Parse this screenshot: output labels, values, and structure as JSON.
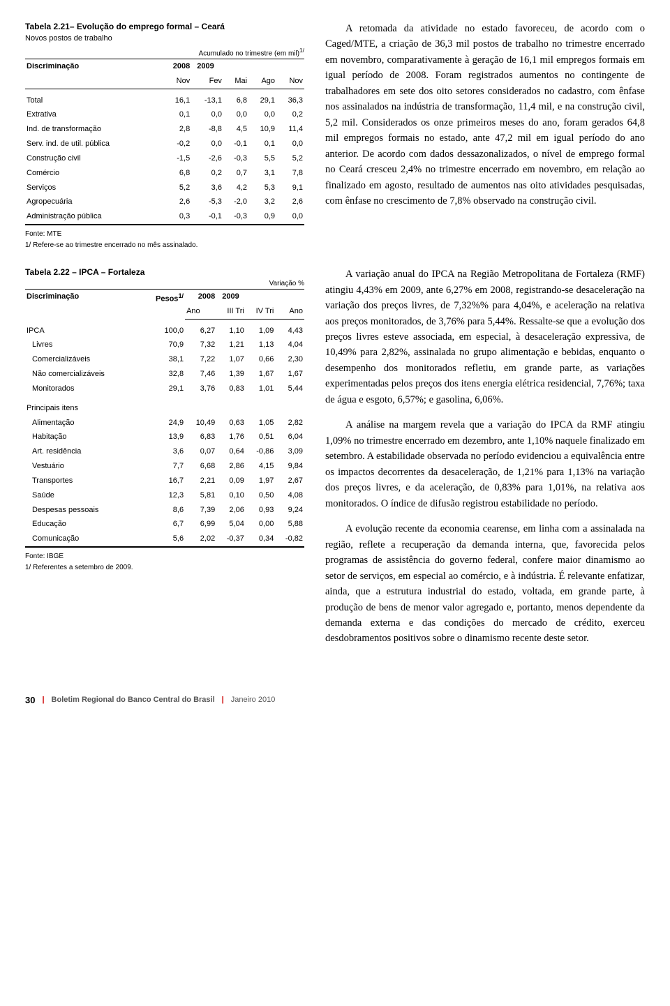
{
  "table1": {
    "title": "Tabela 2.21– Evolução do emprego formal – Ceará",
    "subtitle": "Novos postos de trabalho",
    "unit_note": "Acumulado no trimestre (em mil)",
    "unit_sup": "1/",
    "col_group_label": "Discriminação",
    "year1": "2008",
    "year2": "2009",
    "subcols": [
      "Nov",
      "Fev",
      "Mai",
      "Ago",
      "Nov"
    ],
    "rows": [
      {
        "label": "Total",
        "v": [
          "16,1",
          "-13,1",
          "6,8",
          "29,1",
          "36,3"
        ]
      },
      {
        "label": "Extrativa",
        "v": [
          "0,1",
          "0,0",
          "0,0",
          "0,0",
          "0,2"
        ]
      },
      {
        "label": "Ind. de transformação",
        "v": [
          "2,8",
          "-8,8",
          "4,5",
          "10,9",
          "11,4"
        ]
      },
      {
        "label": "Serv. ind. de util. pública",
        "v": [
          "-0,2",
          "0,0",
          "-0,1",
          "0,1",
          "0,0"
        ]
      },
      {
        "label": "Construção civil",
        "v": [
          "-1,5",
          "-2,6",
          "-0,3",
          "5,5",
          "5,2"
        ]
      },
      {
        "label": "Comércio",
        "v": [
          "6,8",
          "0,2",
          "0,7",
          "3,1",
          "7,8"
        ]
      },
      {
        "label": "Serviços",
        "v": [
          "5,2",
          "3,6",
          "4,2",
          "5,3",
          "9,1"
        ]
      },
      {
        "label": "Agropecuária",
        "v": [
          "2,6",
          "-5,3",
          "-2,0",
          "3,2",
          "2,6"
        ]
      },
      {
        "label": "Administração pública",
        "v": [
          "0,3",
          "-0,1",
          "-0,3",
          "0,9",
          "0,0"
        ]
      }
    ],
    "source": "Fonte: MTE",
    "footnote": "1/ Refere-se ao trimestre encerrado no mês assinalado."
  },
  "table2": {
    "title": "Tabela 2.22 – IPCA – Fortaleza",
    "unit_note": "Variação %",
    "col_group_label": "Discriminação",
    "pesos_label": "Pesos",
    "pesos_sup": "1/",
    "year1": "2008",
    "year2": "2009",
    "subcols": [
      "Ano",
      "III Tri",
      "IV Tri",
      "Ano"
    ],
    "rows_a": [
      {
        "label": "IPCA",
        "indent": 0,
        "v": [
          "100,0",
          "6,27",
          "1,10",
          "1,09",
          "4,43"
        ]
      },
      {
        "label": "Livres",
        "indent": 1,
        "v": [
          "70,9",
          "7,32",
          "1,21",
          "1,13",
          "4,04"
        ]
      },
      {
        "label": "Comercializáveis",
        "indent": 1,
        "v": [
          "38,1",
          "7,22",
          "1,07",
          "0,66",
          "2,30"
        ]
      },
      {
        "label": "Não comercializáveis",
        "indent": 1,
        "v": [
          "32,8",
          "7,46",
          "1,39",
          "1,67",
          "1,67"
        ]
      },
      {
        "label": "Monitorados",
        "indent": 1,
        "v": [
          "29,1",
          "3,76",
          "0,83",
          "1,01",
          "5,44"
        ]
      }
    ],
    "section_label": "Principais itens",
    "rows_b": [
      {
        "label": "Alimentação",
        "v": [
          "24,9",
          "10,49",
          "0,63",
          "1,05",
          "2,82"
        ]
      },
      {
        "label": "Habitação",
        "v": [
          "13,9",
          "6,83",
          "1,76",
          "0,51",
          "6,04"
        ]
      },
      {
        "label": "Art. residência",
        "v": [
          "3,6",
          "0,07",
          "0,64",
          "-0,86",
          "3,09"
        ]
      },
      {
        "label": "Vestuário",
        "v": [
          "7,7",
          "6,68",
          "2,86",
          "4,15",
          "9,84"
        ]
      },
      {
        "label": "Transportes",
        "v": [
          "16,7",
          "2,21",
          "0,09",
          "1,97",
          "2,67"
        ]
      },
      {
        "label": "Saúde",
        "v": [
          "12,3",
          "5,81",
          "0,10",
          "0,50",
          "4,08"
        ]
      },
      {
        "label": "Despesas pessoais",
        "v": [
          "8,6",
          "7,39",
          "2,06",
          "0,93",
          "9,24"
        ]
      },
      {
        "label": "Educação",
        "v": [
          "6,7",
          "6,99",
          "5,04",
          "0,00",
          "5,88"
        ]
      },
      {
        "label": "Comunicação",
        "v": [
          "5,6",
          "2,02",
          "-0,37",
          "0,34",
          "-0,82"
        ]
      }
    ],
    "source": "Fonte: IBGE",
    "footnote": "1/ Referentes a setembro de 2009."
  },
  "paras": {
    "p1": "A retomada da atividade no estado favoreceu, de acordo com o Caged/MTE, a criação de 36,3 mil postos de trabalho no trimestre encerrado em novembro, comparativamente à geração de 16,1 mil empregos formais em igual período de 2008. Foram registrados aumentos no contingente de trabalhadores em sete dos oito setores considerados no cadastro, com ênfase nos assinalados na indústria de transformação, 11,4 mil, e na construção civil, 5,2 mil. Considerados os onze primeiros meses do ano, foram gerados 64,8 mil empregos formais no estado, ante 47,2 mil em igual período do ano anterior. De acordo com dados dessazonalizados, o nível de emprego formal no Ceará cresceu 2,4% no trimestre encerrado em novembro, em relação ao finalizado em agosto, resultado de aumentos nas oito atividades pesquisadas, com ênfase no crescimento de 7,8% observado na construção civil.",
    "p2": "A variação anual do IPCA na Região Metropolitana de Fortaleza (RMF) atingiu 4,43% em 2009, ante 6,27% em 2008, registrando-se desaceleração na variação dos preços livres, de 7,32%% para 4,04%, e aceleração na relativa aos preços monitorados, de 3,76% para 5,44%. Ressalte-se que a evolução dos preços livres esteve associada, em especial, à desaceleração expressiva, de 10,49% para 2,82%, assinalada no grupo alimentação e bebidas, enquanto o desempenho dos monitorados refletiu, em grande parte, as variações experimentadas pelos preços dos itens energia elétrica residencial, 7,76%; taxa de água e esgoto, 6,57%; e gasolina, 6,06%.",
    "p3": "A análise na margem revela que a variação do IPCA da RMF atingiu 1,09% no trimestre encerrado em dezembro, ante 1,10% naquele finalizado em setembro. A estabilidade observada no período evidenciou a equivalência entre os impactos decorrentes da desaceleração, de 1,21% para 1,13% na variação dos preços livres, e da aceleração, de 0,83% para 1,01%, na relativa aos monitorados. O índice de difusão registrou estabilidade no período.",
    "p4": "A evolução recente da economia cearense, em linha com a assinalada na região, reflete a recuperação da demanda interna, que, favorecida pelos programas de assistência do governo federal, confere maior dinamismo ao setor de serviços, em especial ao comércio, e à indústria. É relevante enfatizar, ainda, que a estrutura industrial do estado, voltada, em grande parte, à produção de bens de menor valor agregado e, portanto, menos dependente da demanda externa e das condições do mercado de crédito, exerceu desdobramentos positivos sobre o dinamismo recente deste setor."
  },
  "footer": {
    "page": "30",
    "title": "Boletim Regional do Banco Central do Brasil",
    "date": "Janeiro 2010"
  }
}
